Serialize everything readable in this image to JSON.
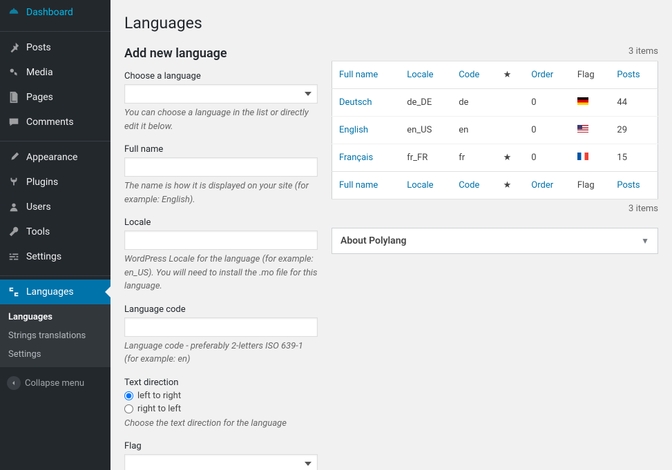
{
  "sidebar": {
    "items": [
      {
        "label": "Dashboard",
        "icon": "dashboard"
      },
      {
        "label": "Posts",
        "icon": "posts"
      },
      {
        "label": "Media",
        "icon": "media"
      },
      {
        "label": "Pages",
        "icon": "pages"
      },
      {
        "label": "Comments",
        "icon": "comments"
      },
      {
        "label": "Appearance",
        "icon": "appearance"
      },
      {
        "label": "Plugins",
        "icon": "plugins"
      },
      {
        "label": "Users",
        "icon": "users"
      },
      {
        "label": "Tools",
        "icon": "tools"
      },
      {
        "label": "Settings",
        "icon": "settings"
      },
      {
        "label": "Languages",
        "icon": "languages"
      }
    ],
    "submenu": [
      {
        "label": "Languages",
        "current": true
      },
      {
        "label": "Strings translations",
        "current": false
      },
      {
        "label": "Settings",
        "current": false
      }
    ],
    "collapse": "Collapse menu"
  },
  "page": {
    "title": "Languages",
    "form_title": "Add new language",
    "fields": {
      "choose": {
        "label": "Choose a language",
        "desc": "You can choose a language in the list or directly edit it below."
      },
      "fullname": {
        "label": "Full name",
        "desc": "The name is how it is displayed on your site (for example: English)."
      },
      "locale": {
        "label": "Locale",
        "desc": "WordPress Locale for the language (for example: en_US). You will need to install the .mo file for this language."
      },
      "code": {
        "label": "Language code",
        "desc": "Language code - preferably 2-letters ISO 639-1 (for example: en)"
      },
      "direction": {
        "label": "Text direction",
        "ltr": "left to right",
        "rtl": "right to left",
        "desc": "Choose the text direction for the language"
      },
      "flag": {
        "label": "Flag"
      }
    },
    "items_count": "3 items",
    "table": {
      "headers": {
        "fullname": "Full name",
        "locale": "Locale",
        "code": "Code",
        "order": "Order",
        "flag": "Flag",
        "posts": "Posts"
      },
      "rows": [
        {
          "name": "Deutsch",
          "locale": "de_DE",
          "code": "de",
          "default": false,
          "order": "0",
          "flag": "de",
          "posts": "44"
        },
        {
          "name": "English",
          "locale": "en_US",
          "code": "en",
          "default": false,
          "order": "0",
          "flag": "us",
          "posts": "29"
        },
        {
          "name": "Français",
          "locale": "fr_FR",
          "code": "fr",
          "default": true,
          "order": "0",
          "flag": "fr",
          "posts": "15"
        }
      ]
    },
    "about_box": "About Polylang"
  },
  "colors": {
    "accent": "#0073aa",
    "sidebar_bg": "#23282d",
    "content_bg": "#f1f1f1"
  }
}
